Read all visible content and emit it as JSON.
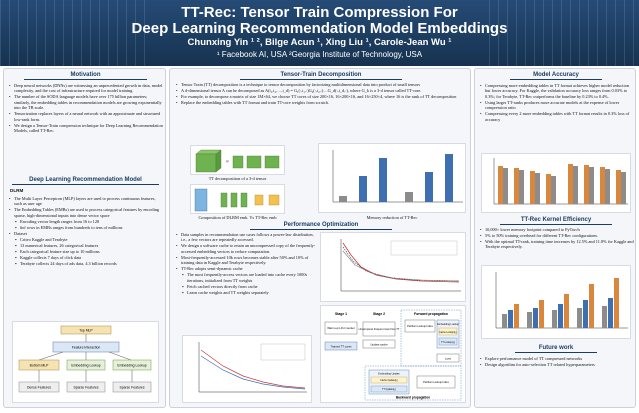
{
  "header": {
    "title_line1": "TT-Rec: Tensor Train Compression For",
    "title_line2": "Deep Learning Recommendation Model Embeddings",
    "authors": "Chunxing Yin ¹ ², Bilge Acun ¹, Xing Liu ¹, Carole-Jean Wu ¹",
    "affiliations": "¹ Facebook AI, USA   ²Georgia Institute of Technology, USA"
  },
  "motivation": {
    "heading": "Motivation",
    "bullets": [
      "Deep neural networks (DNNs) are witnessing an unprecedented growth in data, model complexity, and the cost of infrastructure required for model training.",
      "The number of the SODA language models have over 175 billion parameters; similarly, the embedding tables in recommendation models are growing exponentially into the TB scale.",
      "Tensorization replaces layers of a neural network with an approximate and structured low-rank form.",
      "We design a Tensor-Train compression technique for Deep Learning Recommendation Models, called TT-Rec."
    ]
  },
  "dlrm": {
    "heading": "Deep Learning Recommendation Model",
    "subheading": "DLRM",
    "bullets": [
      "The Multi Layer Perceptron (MLP) layers are used to process continuous features, such as user age",
      "The Embedding Tables (EMBs) are used to process categorical features by encoding sparse, high-dimensional inputs into dense vector space"
    ],
    "sub_bullets": [
      "Encoding vector length ranges from 16 to 128",
      "#of rows in EMBs ranges from hundreds to tens of millions"
    ],
    "dataset_label": "Dataset",
    "dataset_bullets": [
      "Criteo Kaggle and Terabyte",
      "13 numerical features, 26 categorical features",
      "Each categorical feature size up to 10 millions",
      "Kaggle collects 7 days of click data",
      "Terabyte collects 24 days of ads data, 4.3 billion records"
    ],
    "diagram": {
      "top": "Top MLP",
      "interaction": "Feature Interaction",
      "bottom": "Bottom MLP",
      "emb": "Embedding Lookup",
      "sparse": "Sparse Features",
      "dense": "Dense Features"
    }
  },
  "tt_decomp": {
    "heading": "Tensor-Train Decomposition",
    "bullets": [
      "Tensor Train (TT) decomposition is a technique to tensor decomposition by factorizing multidimensional data into product of small tensors",
      "A d-dimensional tensor A can be decomposed as A(i₁,i₂,…,i_d) = G₁(:,i₁,:)G₂(:,i₂,:)…G_d(:,i_d,:), where G_k is a 3-d tensor called TT-core.",
      "For example, to decompose a matrix of size 1M×64, we choose TT cores of size 200×16, 16×200×16, and 16×250×4, where 16 is the rank of TT decomposition",
      "Replace the embedding tables with TT format and train TT-core weights from scratch."
    ],
    "fig1_caption": "TT decomposition of a 3-d tensor",
    "fig2_caption": "Composition of DLRM emb. Vs TT-Rec emb",
    "fig3_caption": "Memory reduction of TT-Rec"
  },
  "perf": {
    "heading": "Performance Optimization",
    "bullets": [
      "Data samples in recommendation use cases follows a power-law distribution, i.e., a few vectors are repeatedly accessed.",
      "We design a software cache to retain an uncompressed copy of the frequently-accessed embedding vectors to reduce computation.",
      "Most-frequently-accessed 10k rows becomes stable after 50% and 10% of training data in Kaggle and Terabyte respectively.",
      "TT-Rec adopts semi-dynamic cache"
    ],
    "sub_bullets": [
      "The most frequently-access vectors are loaded into cache every 1000s iterations, initialized from TT weights",
      "Fetch cached vectors directly from cache",
      "Learn cache weights and TT weights separately"
    ],
    "flow": {
      "forward": "Forward propagation",
      "backward": "Backward propagation",
      "stage1": "Stage 1",
      "stage2": "Stage 2",
      "warmup": "Warm-up LFU counter",
      "topk": "Uncompress frequent rows from TT",
      "update": "Update cache",
      "partition": "Partition Lookup Index",
      "emb_lookup": "Embedding Lookup",
      "cache_lookup": "Cache Lookup(I₁)",
      "tt_lookup": "TT Lookup(I₂)",
      "loss": "Loss",
      "emb_update": "Embedding Update",
      "cache_update": "Cache Update(I₁)",
      "tt_update": "TT Update(I₂)",
      "trained": "Trained TT cores"
    }
  },
  "accuracy": {
    "heading": "Model Accuracy",
    "bullets": [
      "Compressing more embedding tables in TT format achieves higher model reduction but lower accuracy. For Kaggle, the validation accuracy loss ranges from 0.03% to 0.3%; for Terabyte, TT-Rec outperforms the baseline by 0.23% to 0.4%.",
      "Using larger TT-ranks produces more accurate models at the expense of lower compression ratio",
      "Compressing every 2 more embedding tables with TT format results in 0.3% loss of accuracy"
    ]
  },
  "efficiency": {
    "heading": "TT-Rec Kernel Efficiency",
    "bullets": [
      "10,000× lower memory footprint compared to PyTorch",
      "5% to 50% training overhead for different TT-Rec configurations.",
      "With the optimal TT-rank, training time increases by 12.5% and 11.8% for Kaggle and Terabyte respectively."
    ]
  },
  "future": {
    "heading": "Future work",
    "bullets": [
      "Explore performance model of TT compressed networks",
      "Design algorithm for auto-selection TT related hyperparameters"
    ]
  },
  "colors": {
    "header": "#1c3d63",
    "accent": "#1c3d63",
    "bar_orange": "#d8873d",
    "bar_gray": "#8c8c8c",
    "bar_blue": "#3e6fb0"
  }
}
